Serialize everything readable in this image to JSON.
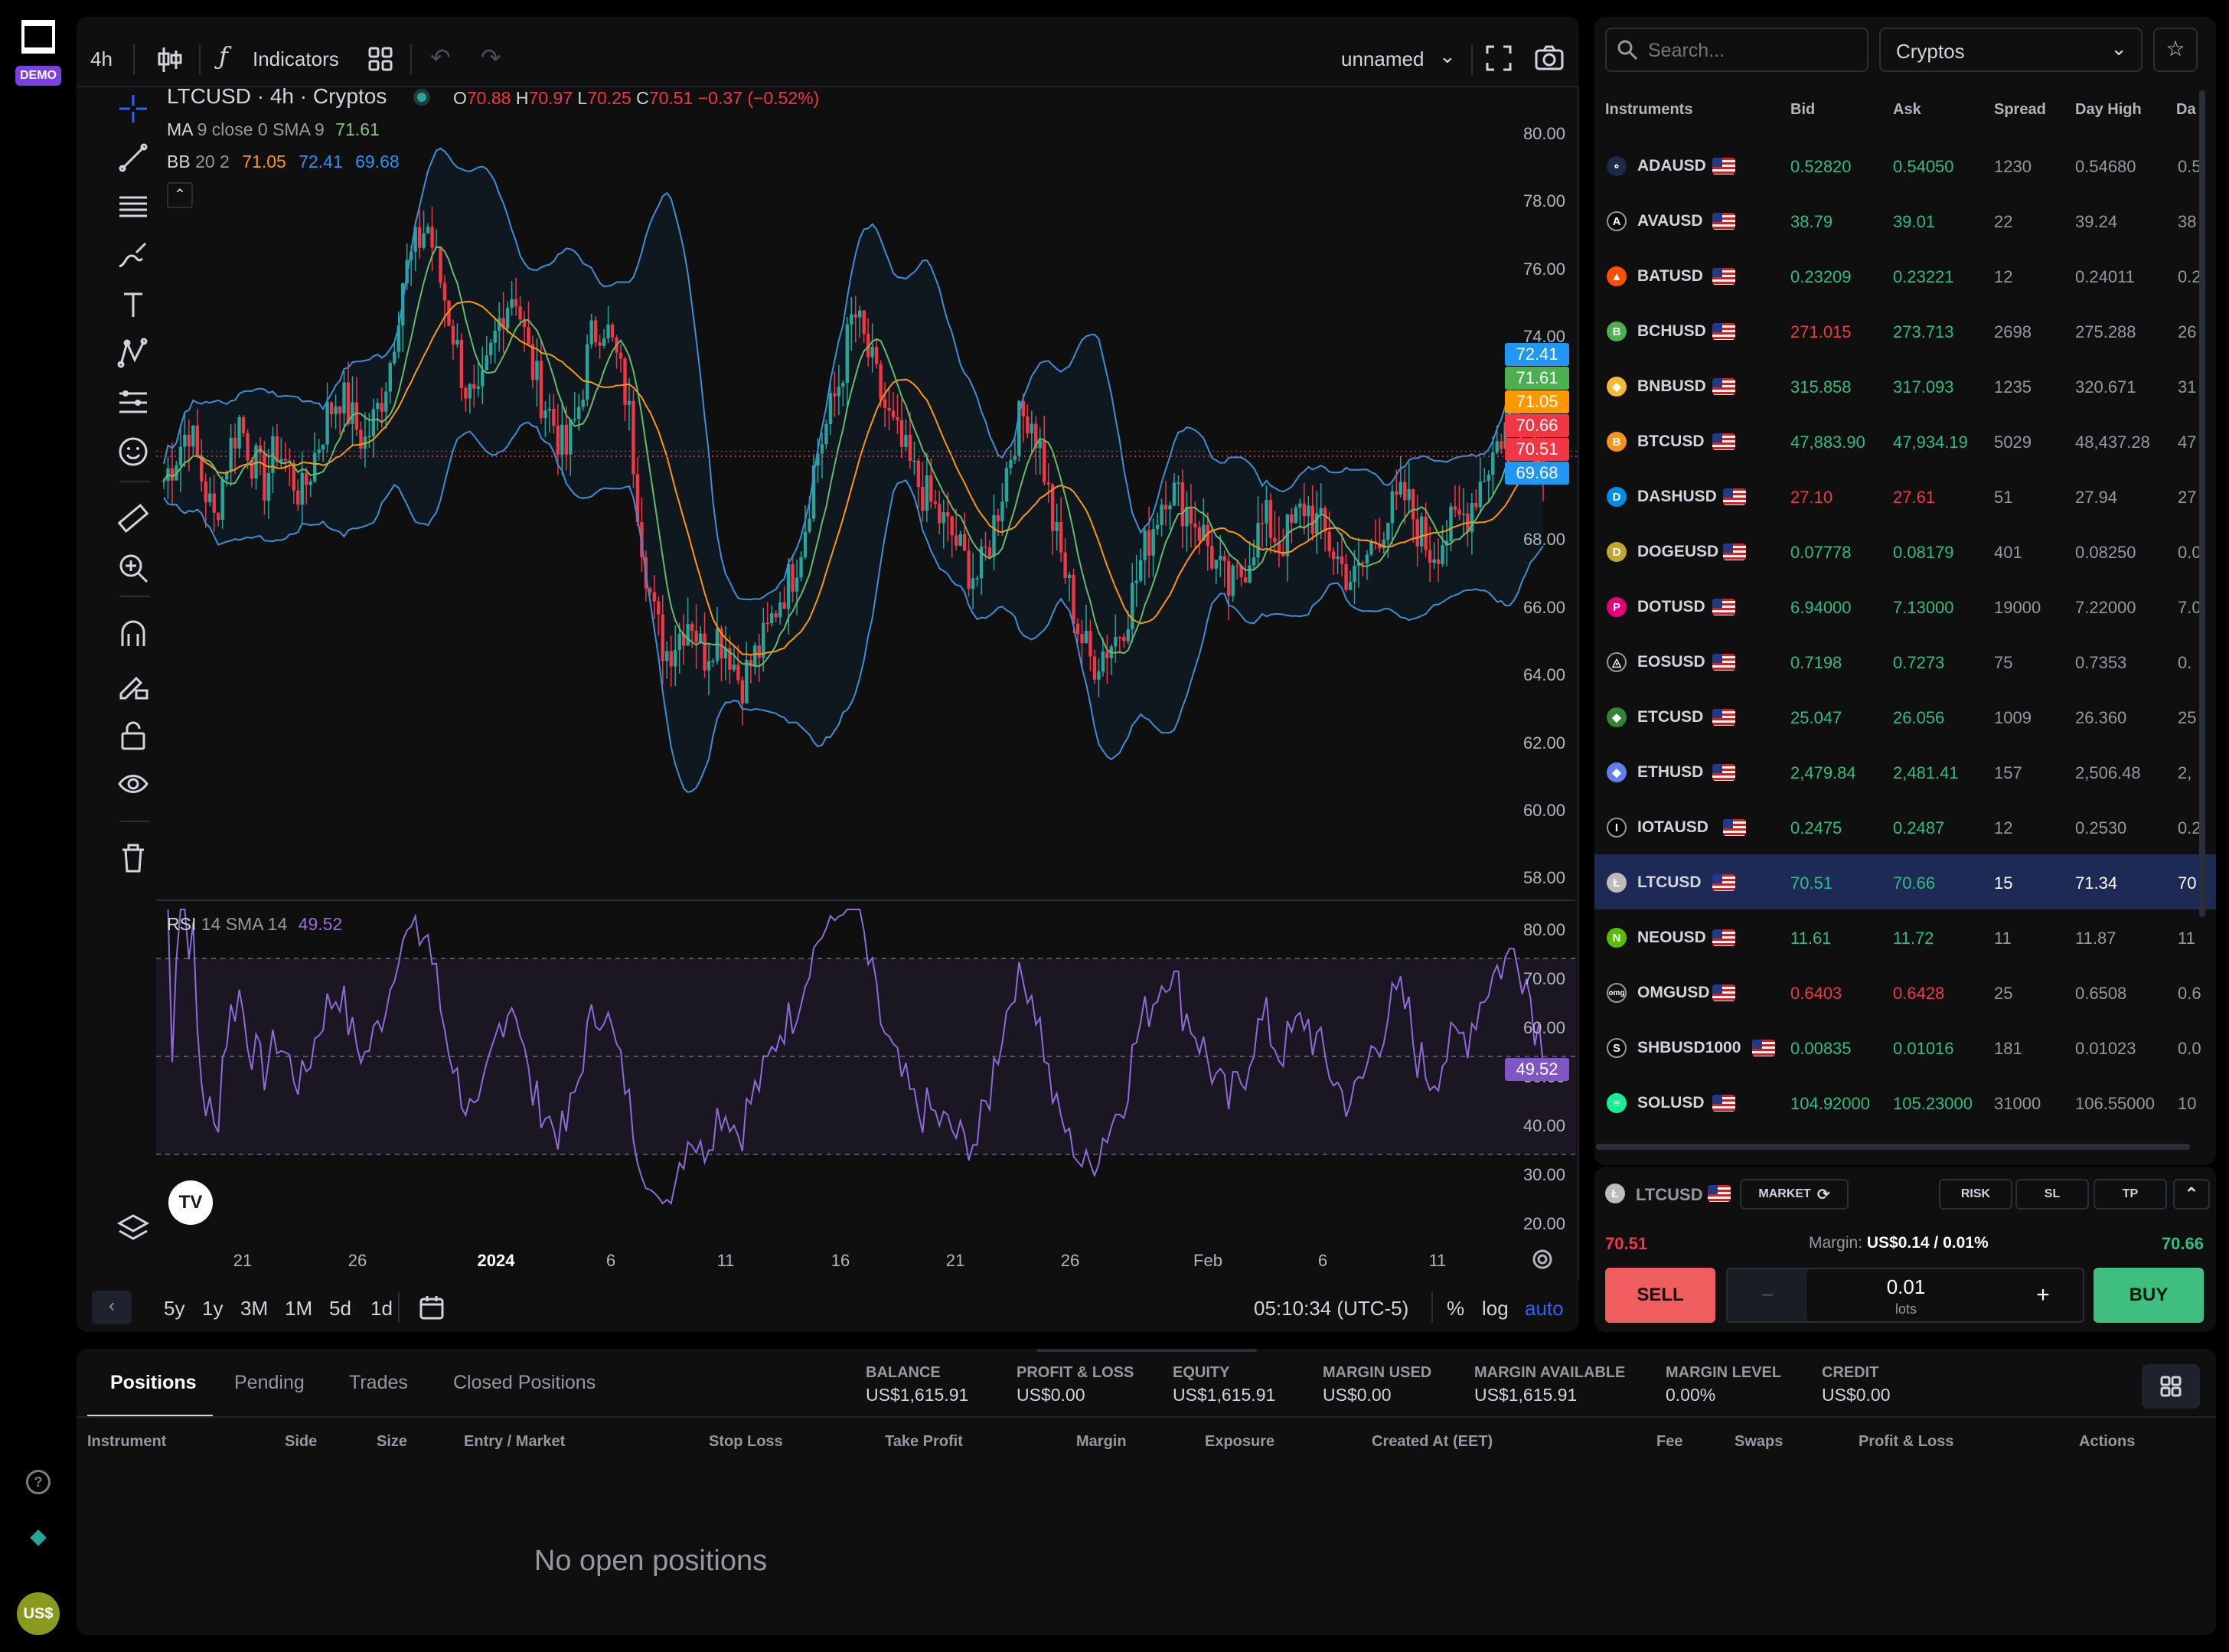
{
  "sidebar": {
    "demo_badge": "DEMO",
    "currency_avatar": "US$"
  },
  "toolbar": {
    "timeframe": "4h",
    "indicators_label": "Indicators",
    "layout_name": "unnamed"
  },
  "legend": {
    "title": "LTCUSD · 4h · Cryptos",
    "o_label": "O",
    "o": "70.88",
    "h_label": "H",
    "h": "70.97",
    "l_label": "L",
    "l": "70.25",
    "c_label": "C",
    "c": "70.51",
    "change": "−0.37 (−0.52%)",
    "ma_label": "MA",
    "ma_params": "9 close 0 SMA 9",
    "ma_value": "71.61",
    "bb_label": "BB",
    "bb_params": "20 2",
    "bb_basis": "71.05",
    "bb_upper": "72.41",
    "bb_lower": "69.68",
    "rsi_label": "RSI",
    "rsi_params": "14 SMA 14",
    "rsi_value": "49.52"
  },
  "price_axis": [
    "80.00",
    "78.00",
    "76.00",
    "74.00",
    "72.00",
    "70.00",
    "68.00",
    "66.00",
    "64.00",
    "62.00",
    "60.00",
    "58.00"
  ],
  "price_badges": [
    {
      "text": "72.41",
      "color": "#2196f3"
    },
    {
      "text": "71.61",
      "color": "#4caf50"
    },
    {
      "text": "71.05",
      "color": "#ff9800"
    },
    {
      "text": "70.66",
      "color": "#f23645"
    },
    {
      "text": "70.51",
      "color": "#f23645"
    },
    {
      "text": "69.68",
      "color": "#2196f3"
    }
  ],
  "rsi_axis": [
    "80.00",
    "70.00",
    "60.00",
    "50.00",
    "40.00",
    "30.00",
    "20.00"
  ],
  "rsi_badge": "49.52",
  "time_axis": [
    "21",
    "26",
    "2024",
    "6",
    "11",
    "16",
    "21",
    "26",
    "Feb",
    "6",
    "11"
  ],
  "range_buttons": [
    "5y",
    "1y",
    "3M",
    "1M",
    "5d",
    "1d"
  ],
  "clock": "05:10:34 (UTC-5)",
  "scale_buttons": {
    "percent": "%",
    "log": "log",
    "auto": "auto"
  },
  "chart_data": {
    "type": "candlestick",
    "symbol": "LTCUSD",
    "interval": "4h",
    "ylim": [
      57,
      81
    ],
    "close_series": [
      69.8,
      70.6,
      71.4,
      69.9,
      68.6,
      70.4,
      71.6,
      70.5,
      69.7,
      70.8,
      70.1,
      69.3,
      70.5,
      71.7,
      72.4,
      71.6,
      70.9,
      71.8,
      73.2,
      75.7,
      76.6,
      77.4,
      75.8,
      74.3,
      72.6,
      71.8,
      73.4,
      74.9,
      75.5,
      73.6,
      72.4,
      71.6,
      70.5,
      71.8,
      73.9,
      74.6,
      73.5,
      72.1,
      68.4,
      65.9,
      64.7,
      65.2,
      65.9,
      64.6,
      65.3,
      64.9,
      63.8,
      64.5,
      65.1,
      66.3,
      66.9,
      68.2,
      70.5,
      71.6,
      72.9,
      74.8,
      73.7,
      72.5,
      71.4,
      70.6,
      69.8,
      69.2,
      68.6,
      68.1,
      67.3,
      66.9,
      68.2,
      69.8,
      71.4,
      71.9,
      70.6,
      68.3,
      66.9,
      65.3,
      64.4,
      64.8,
      65.2,
      66.1,
      67.5,
      68.6,
      69.7,
      69.2,
      68.8,
      68.1,
      67.2,
      66.5,
      67.1,
      68.1,
      68.6,
      67.9,
      68.4,
      69.1,
      68.5,
      67.9,
      67.2,
      66.8,
      67.6,
      68.4,
      68.9,
      69.3,
      68.4,
      67.7,
      68.1,
      68.5,
      68.9,
      69.8,
      70.6,
      71.4,
      72.1,
      71.3,
      70.5
    ]
  },
  "search_placeholder": "Search...",
  "category_select": "Cryptos",
  "instrument_headers": {
    "instruments": "Instruments",
    "bid": "Bid",
    "ask": "Ask",
    "spread": "Spread",
    "day_high": "Day High",
    "day_low": "Da"
  },
  "instruments": [
    {
      "sym": "ADAUSD",
      "bid": "0.52820",
      "ask": "0.54050",
      "spread": "1230",
      "high": "0.54680",
      "low": "0.5",
      "bc": "#2ebd85",
      "ac": "#2ebd85",
      "coin": "#1c2a4a",
      "ic": "∘"
    },
    {
      "sym": "AVAUSD",
      "bid": "38.79",
      "ask": "39.01",
      "spread": "22",
      "high": "39.24",
      "low": "38",
      "bc": "#2ebd85",
      "ac": "#2ebd85",
      "coin": "#000",
      "ic": "A"
    },
    {
      "sym": "BATUSD",
      "bid": "0.23209",
      "ask": "0.23221",
      "spread": "12",
      "high": "0.24011",
      "low": "0.2",
      "bc": "#2ebd85",
      "ac": "#2ebd85",
      "coin": "#ff5000",
      "ic": "▲"
    },
    {
      "sym": "BCHUSD",
      "bid": "271.015",
      "ask": "273.713",
      "spread": "2698",
      "high": "275.288",
      "low": "26",
      "bc": "#f23645",
      "ac": "#2ebd85",
      "coin": "#4caf50",
      "ic": "B"
    },
    {
      "sym": "BNBUSD",
      "bid": "315.858",
      "ask": "317.093",
      "spread": "1235",
      "high": "320.671",
      "low": "31",
      "bc": "#2ebd85",
      "ac": "#2ebd85",
      "coin": "#f3ba2f",
      "ic": "◆"
    },
    {
      "sym": "BTCUSD",
      "bid": "47,883.90",
      "ask": "47,934.19",
      "spread": "5029",
      "high": "48,437.28",
      "low": "47",
      "bc": "#2ebd85",
      "ac": "#2ebd85",
      "coin": "#f7931a",
      "ic": "B"
    },
    {
      "sym": "DASHUSD",
      "bid": "27.10",
      "ask": "27.61",
      "spread": "51",
      "high": "27.94",
      "low": "27",
      "bc": "#f23645",
      "ac": "#f23645",
      "coin": "#008de4",
      "ic": "D"
    },
    {
      "sym": "DOGEUSD",
      "bid": "0.07778",
      "ask": "0.08179",
      "spread": "401",
      "high": "0.08250",
      "low": "0.0",
      "bc": "#2ebd85",
      "ac": "#2ebd85",
      "coin": "#c2a633",
      "ic": "D"
    },
    {
      "sym": "DOTUSD",
      "bid": "6.94000",
      "ask": "7.13000",
      "spread": "19000",
      "high": "7.22000",
      "low": "7.0",
      "bc": "#2ebd85",
      "ac": "#2ebd85",
      "coin": "#e6007a",
      "ic": "P"
    },
    {
      "sym": "EOSUSD",
      "bid": "0.7198",
      "ask": "0.7273",
      "spread": "75",
      "high": "0.7353",
      "low": "0.",
      "bc": "#2ebd85",
      "ac": "#2ebd85",
      "coin": "#111",
      "ic": "◬"
    },
    {
      "sym": "ETCUSD",
      "bid": "25.047",
      "ask": "26.056",
      "spread": "1009",
      "high": "26.360",
      "low": "25",
      "bc": "#2ebd85",
      "ac": "#2ebd85",
      "coin": "#328332",
      "ic": "◆"
    },
    {
      "sym": "ETHUSD",
      "bid": "2,479.84",
      "ask": "2,481.41",
      "spread": "157",
      "high": "2,506.48",
      "low": "2,",
      "bc": "#2ebd85",
      "ac": "#2ebd85",
      "coin": "#627eea",
      "ic": "◆"
    },
    {
      "sym": "IOTAUSD",
      "bid": "0.2475",
      "ask": "0.2487",
      "spread": "12",
      "high": "0.2530",
      "low": "0.2",
      "bc": "#2ebd85",
      "ac": "#2ebd85",
      "coin": "#000",
      "ic": "I"
    },
    {
      "sym": "LTCUSD",
      "bid": "70.51",
      "ask": "70.66",
      "spread": "15",
      "high": "71.34",
      "low": "70",
      "bc": "#2ebd85",
      "ac": "#2ebd85",
      "coin": "#bfbbbb",
      "ic": "Ł"
    },
    {
      "sym": "NEOUSD",
      "bid": "11.61",
      "ask": "11.72",
      "spread": "11",
      "high": "11.87",
      "low": "11",
      "bc": "#2ebd85",
      "ac": "#2ebd85",
      "coin": "#58bf00",
      "ic": "N"
    },
    {
      "sym": "OMGUSD",
      "bid": "0.6403",
      "ask": "0.6428",
      "spread": "25",
      "high": "0.6508",
      "low": "0.6",
      "bc": "#f23645",
      "ac": "#f23645",
      "coin": "#111",
      "ic": "omg"
    },
    {
      "sym": "SHBUSD1000",
      "bid": "0.00835",
      "ask": "0.01016",
      "spread": "181",
      "high": "0.01023",
      "low": "0.0",
      "bc": "#2ebd85",
      "ac": "#2ebd85",
      "coin": "#000",
      "ic": "S"
    },
    {
      "sym": "SOLUSD",
      "bid": "104.92000",
      "ask": "105.23000",
      "spread": "31000",
      "high": "106.55000",
      "low": "10",
      "bc": "#2ebd85",
      "ac": "#2ebd85",
      "coin": "#14f195",
      "ic": "≡"
    }
  ],
  "selected_instrument": "LTCUSD",
  "trade": {
    "symbol": "LTCUSD",
    "order_type": "MARKET",
    "risk": "RISK",
    "sl": "SL",
    "tp": "TP",
    "sell_price": "70.51",
    "margin_label": "Margin:",
    "margin_value": "US$0.14 / 0.01%",
    "buy_price": "70.66",
    "sell_label": "SELL",
    "buy_label": "BUY",
    "lots_value": "0.01",
    "lots_label": "lots",
    "minus": "−",
    "plus": "+"
  },
  "bottom": {
    "tabs": [
      "Positions",
      "Pending",
      "Trades",
      "Closed Positions"
    ],
    "active_tab": "Positions",
    "stats": [
      {
        "label": "BALANCE",
        "value": "US$1,615.91"
      },
      {
        "label": "PROFIT & LOSS",
        "value": "US$0.00"
      },
      {
        "label": "EQUITY",
        "value": "US$1,615.91"
      },
      {
        "label": "MARGIN USED",
        "value": "US$0.00"
      },
      {
        "label": "MARGIN AVAILABLE",
        "value": "US$1,615.91"
      },
      {
        "label": "MARGIN LEVEL",
        "value": "0.00%"
      },
      {
        "label": "CREDIT",
        "value": "US$0.00"
      }
    ],
    "columns": [
      "Instrument",
      "Side",
      "Size",
      "Entry / Market",
      "Stop Loss",
      "Take Profit",
      "Margin",
      "Exposure",
      "Created At (EET)",
      "Fee",
      "Swaps",
      "Profit & Loss",
      "Actions"
    ],
    "empty_message": "No open positions"
  }
}
